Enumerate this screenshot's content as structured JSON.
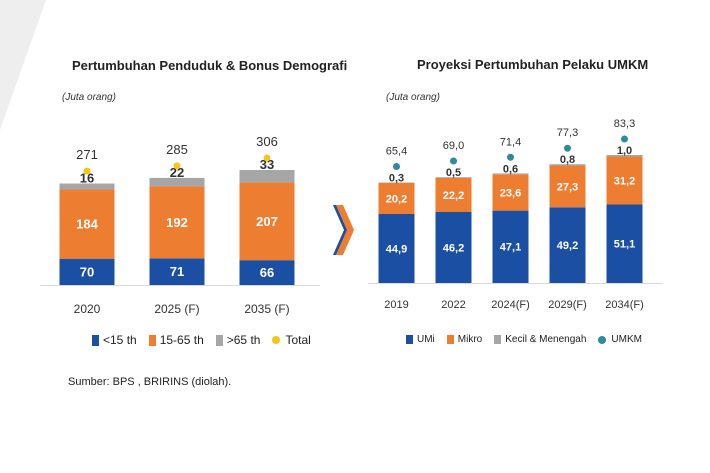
{
  "colors": {
    "blue": "#1b4fa3",
    "orange": "#ed7d31",
    "gray": "#a6a6a6",
    "yellow": "#f5c518",
    "teal": "#2e8b9a",
    "chevron": "#ed7d31"
  },
  "left_chart": {
    "title": "Pertumbuhan Penduduk & Bonus Demografi",
    "unit": "(Juta orang)",
    "legend": [
      {
        "label": "<15 th",
        "color": "#1b4fa3",
        "kind": "square"
      },
      {
        "label": "15-65 th",
        "color": "#ed7d31",
        "kind": "square"
      },
      {
        "label": ">65 th",
        "color": "#a6a6a6",
        "kind": "square"
      },
      {
        "label": "Total",
        "color": "#f5c518",
        "kind": "dot"
      }
    ]
  },
  "right_chart": {
    "title": "Proyeksi Pertumbuhan Pelaku UMKM",
    "unit": "(Juta orang)",
    "legend": [
      {
        "label": "UMi",
        "color": "#1b4fa3",
        "kind": "square"
      },
      {
        "label": "Mikro",
        "color": "#ed7d31",
        "kind": "square"
      },
      {
        "label": "Kecil & Menengah",
        "color": "#a6a6a6",
        "kind": "square"
      },
      {
        "label": "UMKM",
        "color": "#2e8b9a",
        "kind": "dot"
      }
    ]
  },
  "source": "Sumber: BPS , BRIRINS (diolah).",
  "chart_data": [
    {
      "type": "bar",
      "stacked": true,
      "title": "Pertumbuhan Penduduk & Bonus Demografi",
      "ylabel": "(Juta orang)",
      "categories": [
        "2020",
        "2025 (F)",
        "2035 (F)"
      ],
      "series": [
        {
          "name": "<15 th",
          "values": [
            70,
            71,
            66
          ],
          "labels": [
            "70",
            "71",
            "66"
          ],
          "color": "#1b4fa3"
        },
        {
          "name": "15-65 th",
          "values": [
            184,
            192,
            207
          ],
          "labels": [
            "184",
            "192",
            "207"
          ],
          "color": "#ed7d31"
        },
        {
          "name": ">65 th",
          "values": [
            16,
            22,
            33
          ],
          "labels": [
            "16",
            "22",
            "33"
          ],
          "color": "#a6a6a6"
        }
      ],
      "totals": {
        "name": "Total",
        "values": [
          271,
          285,
          306
        ],
        "labels": [
          "271",
          "285",
          "306"
        ],
        "color": "#f5c518"
      },
      "grid": false,
      "legend": "bottom"
    },
    {
      "type": "bar",
      "stacked": true,
      "title": "Proyeksi Pertumbuhan Pelaku UMKM",
      "ylabel": "(Juta orang)",
      "categories": [
        "2019",
        "2022",
        "2024(F)",
        "2029(F)",
        "2034(F)"
      ],
      "series": [
        {
          "name": "UMi",
          "values": [
            44.9,
            46.2,
            47.1,
            49.2,
            51.1
          ],
          "labels": [
            "44,9",
            "46,2",
            "47,1",
            "49,2",
            "51,1"
          ],
          "color": "#1b4fa3"
        },
        {
          "name": "Mikro",
          "values": [
            20.2,
            22.2,
            23.6,
            27.3,
            31.2
          ],
          "labels": [
            "20,2",
            "22,2",
            "23,6",
            "27,3",
            "31,2"
          ],
          "color": "#ed7d31"
        },
        {
          "name": "Kecil & Menengah",
          "values": [
            0.3,
            0.5,
            0.6,
            0.8,
            1.0
          ],
          "labels": [
            "0,3",
            "0,5",
            "0,6",
            "0,8",
            "1,0"
          ],
          "color": "#a6a6a6"
        }
      ],
      "totals": {
        "name": "UMKM",
        "values": [
          65.4,
          69.0,
          71.4,
          77.3,
          83.3
        ],
        "labels": [
          "65,4",
          "69,0",
          "71,4",
          "77,3",
          "83,3"
        ],
        "color": "#2e8b9a"
      },
      "grid": false,
      "legend": "bottom"
    }
  ]
}
